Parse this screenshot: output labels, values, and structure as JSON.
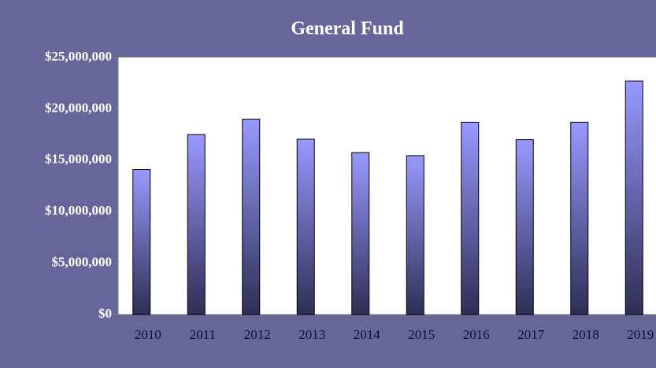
{
  "chart_data": {
    "type": "bar",
    "title": "General Fund",
    "categories": [
      "2010",
      "2011",
      "2012",
      "2013",
      "2014",
      "2015",
      "2016",
      "2017",
      "2018",
      "2019"
    ],
    "values": [
      14100000,
      17500000,
      19000000,
      17050000,
      15750000,
      15450000,
      18700000,
      17000000,
      18700000,
      22700000
    ],
    "color": "#9999ff",
    "ylim": [
      0,
      25000000
    ],
    "yticks": [
      {
        "value": 0,
        "label": "$0"
      },
      {
        "value": 5000000,
        "label": "$5,000,000"
      },
      {
        "value": 10000000,
        "label": "$10,000,000"
      },
      {
        "value": 15000000,
        "label": "$15,000,000"
      },
      {
        "value": 20000000,
        "label": "$20,000,000"
      },
      {
        "value": 25000000,
        "label": "$25,000,000"
      }
    ],
    "grid": false
  }
}
